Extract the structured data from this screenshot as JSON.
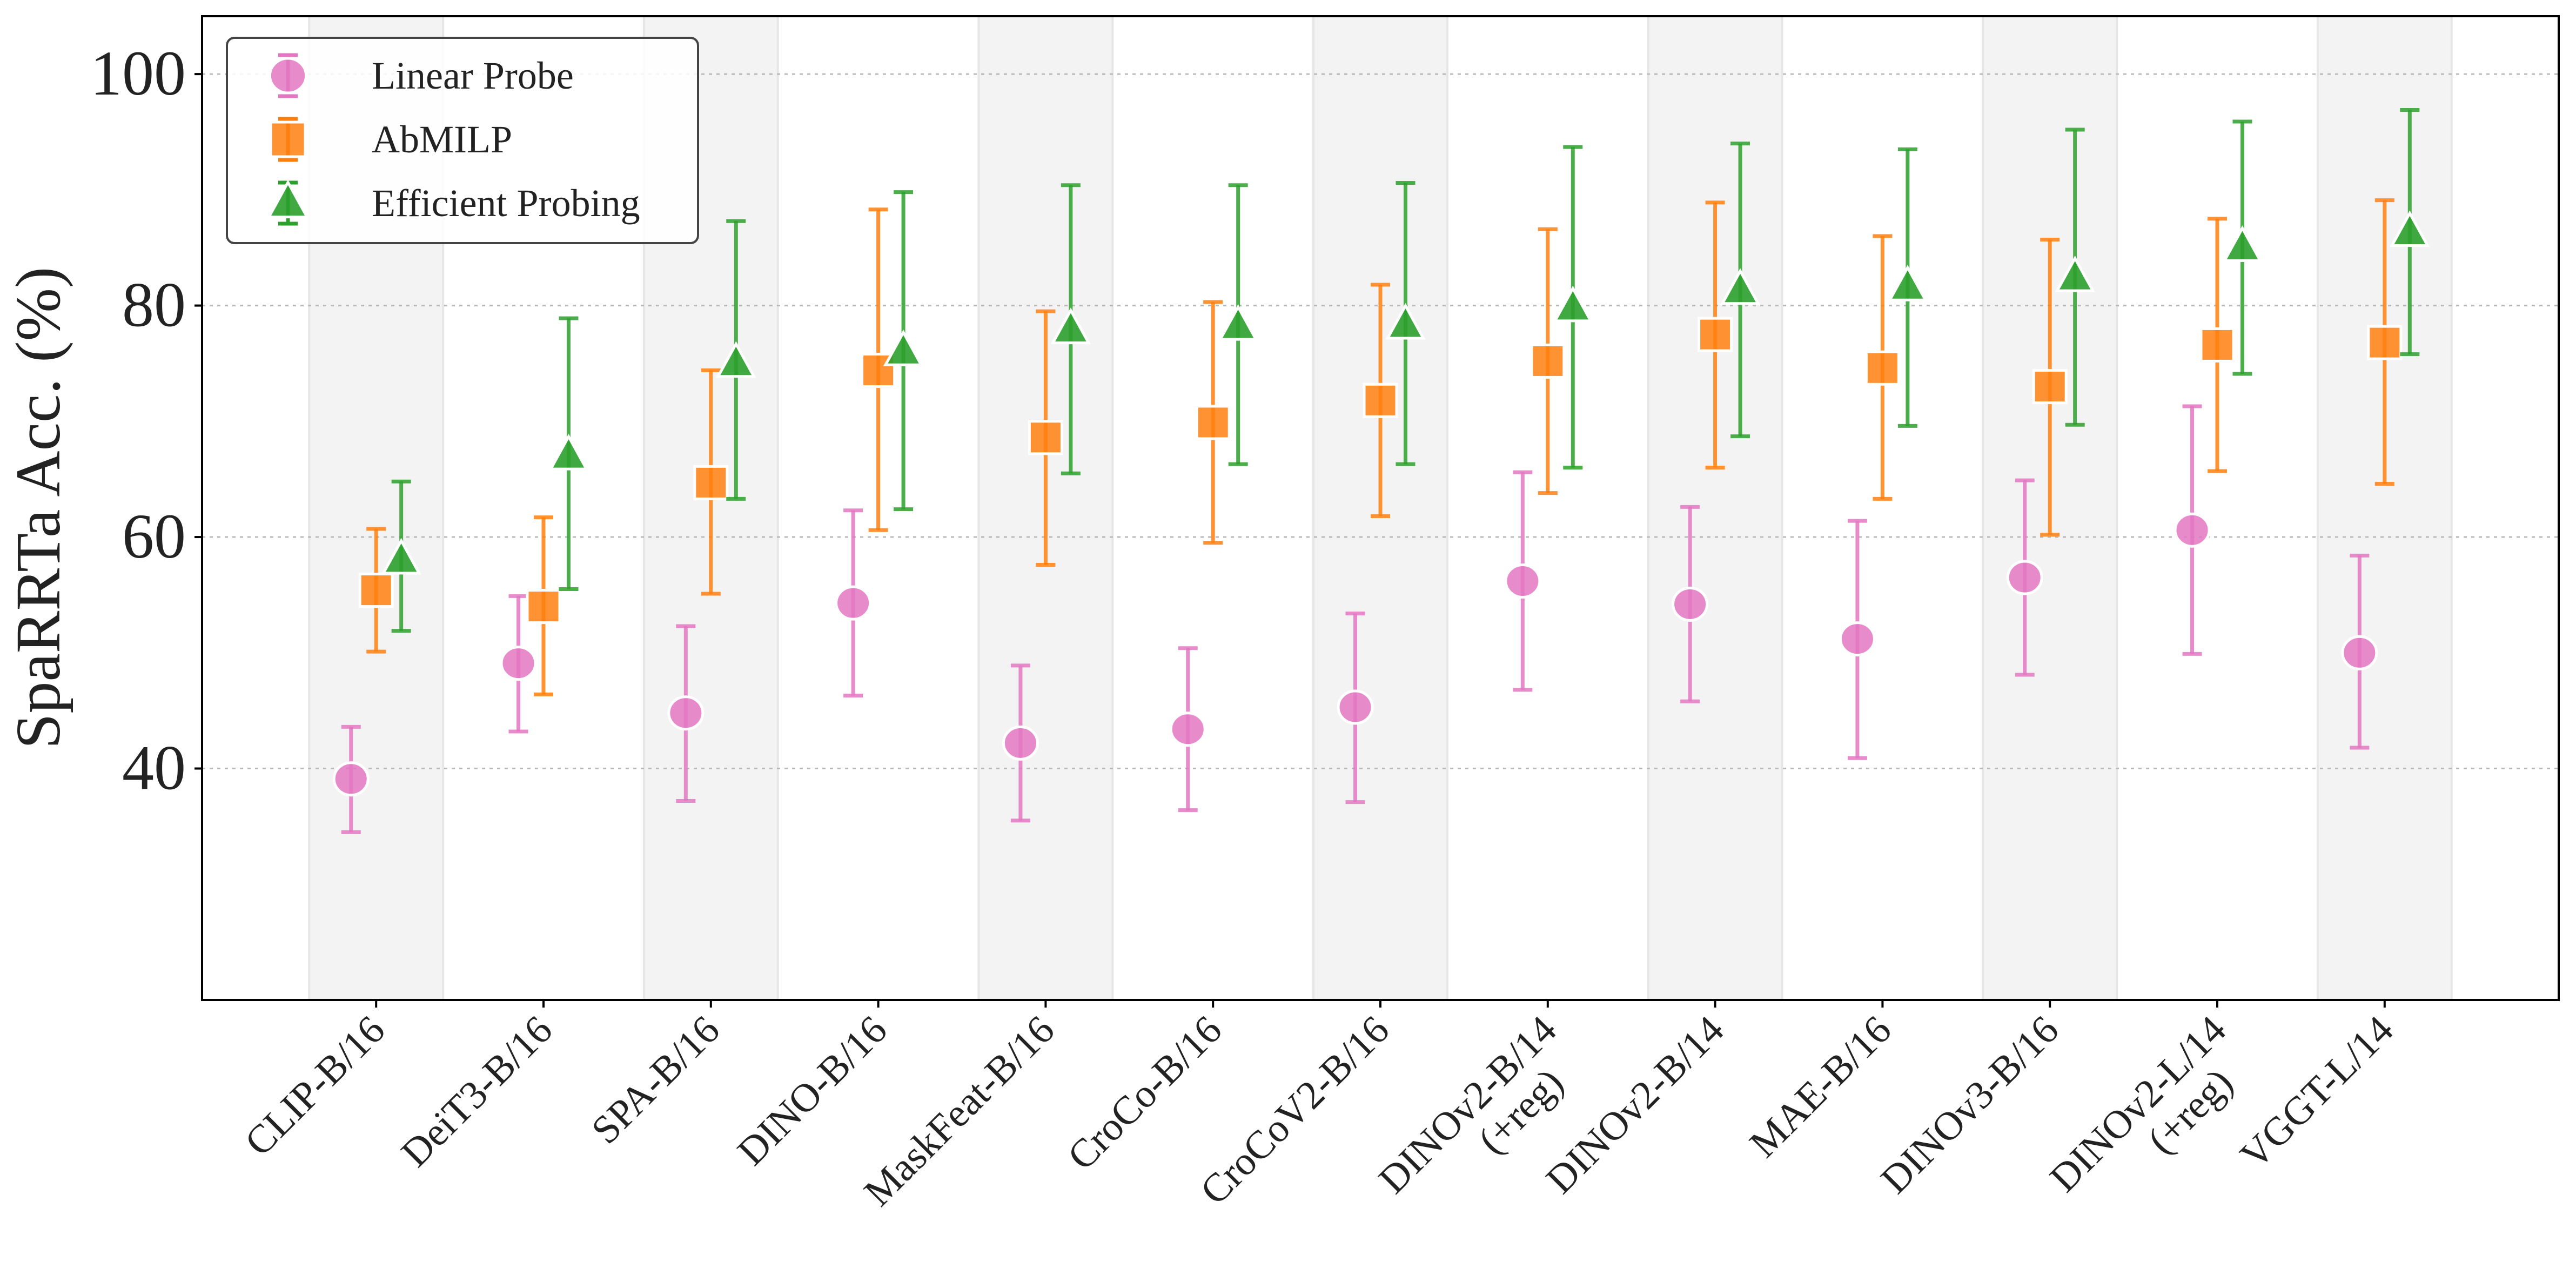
{
  "chart_data": {
    "type": "scatter",
    "subtype": "errorbar",
    "title": "",
    "xlabel": "",
    "ylabel": "SpaRRTa Acc. (%)",
    "ylim": [
      20,
      105
    ],
    "yticks": [
      40,
      60,
      80,
      100
    ],
    "grid": "horizontal dotted",
    "legend_position": "top-left",
    "categories": [
      "CLIP-B/16",
      "DeiT3-B/16",
      "SPA-B/16",
      "DINO-B/16",
      "MaskFeat-B/16",
      "CroCo-B/16",
      "CroCoV2-B/16",
      "DINOv2-B/14\n(+reg)",
      "DINOv2-B/14",
      "MAE-B/16",
      "DINOv3-B/16",
      "DINOv2-L/14\n(+reg)",
      "VGGT-L/14"
    ],
    "series": [
      {
        "name": "Linear Probe",
        "marker": "circle",
        "color": "#e377c2",
        "values": [
          39.1,
          49.1,
          44.8,
          54.3,
          42.2,
          43.4,
          45.3,
          56.2,
          54.2,
          51.2,
          56.5,
          60.6,
          50.0
        ],
        "upper": [
          43.6,
          54.9,
          52.3,
          62.3,
          48.9,
          50.4,
          53.4,
          65.6,
          62.6,
          61.4,
          64.9,
          71.3,
          58.4
        ],
        "lower": [
          34.5,
          43.2,
          37.2,
          46.3,
          35.5,
          36.4,
          37.1,
          46.8,
          45.8,
          40.9,
          48.1,
          49.9,
          41.8
        ]
      },
      {
        "name": "AbMILP",
        "marker": "square",
        "color": "#ff7f0e",
        "values": [
          55.4,
          54.0,
          64.7,
          74.4,
          68.6,
          69.9,
          71.8,
          75.2,
          77.5,
          74.6,
          73.0,
          76.6,
          76.8
        ],
        "upper": [
          60.7,
          61.7,
          74.4,
          88.3,
          79.5,
          80.3,
          81.8,
          86.6,
          88.9,
          86.0,
          85.7,
          87.5,
          89.1
        ],
        "lower": [
          50.1,
          46.4,
          55.1,
          60.6,
          57.6,
          59.5,
          61.8,
          63.8,
          66.0,
          63.3,
          60.2,
          65.7,
          64.6
        ]
      },
      {
        "name": "Efficient Probing",
        "marker": "triangle",
        "color": "#2ca02c",
        "values": [
          58.0,
          67.0,
          75.0,
          76.0,
          77.9,
          78.2,
          78.3,
          79.8,
          81.3,
          81.6,
          82.4,
          85.0,
          86.3
        ],
        "upper": [
          64.8,
          78.9,
          87.3,
          89.8,
          90.4,
          90.4,
          90.6,
          93.7,
          94.0,
          93.5,
          95.2,
          95.9,
          96.9
        ],
        "lower": [
          51.9,
          55.5,
          63.3,
          62.4,
          65.5,
          66.3,
          66.3,
          66.0,
          68.7,
          69.6,
          69.7,
          74.1,
          75.8
        ]
      }
    ],
    "shaded_bands": "alternating categories (0,2,4,...)"
  }
}
